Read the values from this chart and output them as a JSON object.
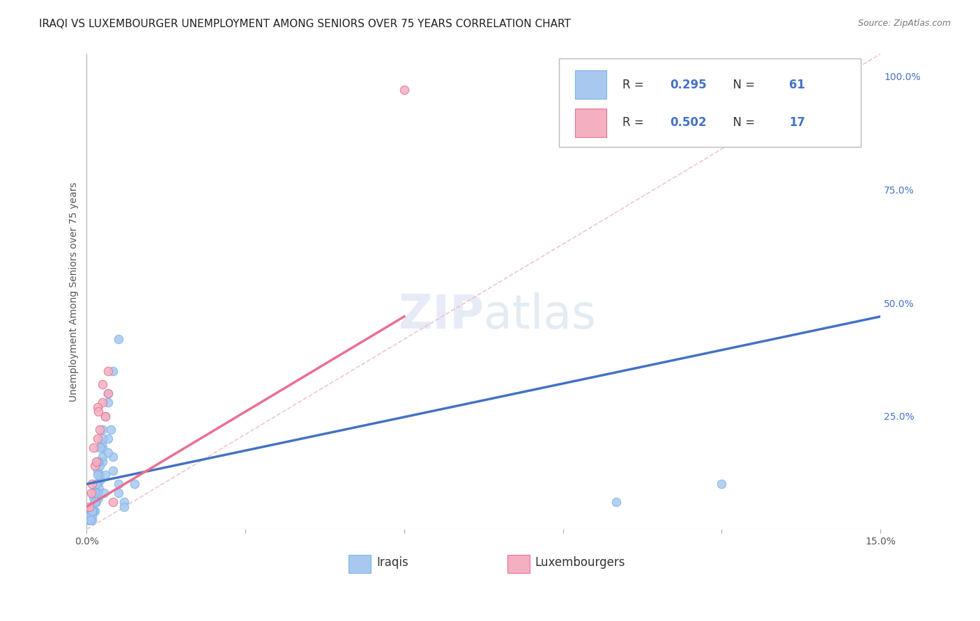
{
  "title": "IRAQI VS LUXEMBOURGER UNEMPLOYMENT AMONG SENIORS OVER 75 YEARS CORRELATION CHART",
  "source": "Source: ZipAtlas.com",
  "ylabel": "Unemployment Among Seniors over 75 years",
  "xlim": [
    0.0,
    0.15
  ],
  "ylim": [
    0.0,
    1.05
  ],
  "xtick_positions": [
    0.0,
    0.03,
    0.06,
    0.09,
    0.12,
    0.15
  ],
  "xticklabels": [
    "0.0%",
    "",
    "",
    "",
    "",
    "15.0%"
  ],
  "ytick_positions": [
    0.0,
    0.25,
    0.5,
    0.75,
    1.0
  ],
  "yticklabels_right": [
    "",
    "25.0%",
    "50.0%",
    "75.0%",
    "100.0%"
  ],
  "iraqis_x": [
    0.0005,
    0.0008,
    0.001,
    0.0012,
    0.0015,
    0.0018,
    0.002,
    0.0022,
    0.0025,
    0.003,
    0.0005,
    0.0007,
    0.001,
    0.0013,
    0.0016,
    0.002,
    0.0023,
    0.0026,
    0.003,
    0.0032,
    0.0005,
    0.0008,
    0.001,
    0.0015,
    0.002,
    0.0025,
    0.003,
    0.0035,
    0.004,
    0.0045,
    0.0006,
    0.0009,
    0.0012,
    0.0018,
    0.0022,
    0.0028,
    0.0035,
    0.004,
    0.005,
    0.006,
    0.0007,
    0.001,
    0.0015,
    0.002,
    0.0025,
    0.003,
    0.004,
    0.005,
    0.006,
    0.007,
    0.001,
    0.0015,
    0.002,
    0.003,
    0.004,
    0.005,
    0.006,
    0.007,
    0.009,
    0.12,
    0.1
  ],
  "iraqis_y": [
    0.03,
    0.05,
    0.02,
    0.08,
    0.04,
    0.06,
    0.1,
    0.07,
    0.12,
    0.15,
    0.02,
    0.03,
    0.05,
    0.04,
    0.07,
    0.13,
    0.09,
    0.11,
    0.16,
    0.08,
    0.02,
    0.04,
    0.03,
    0.06,
    0.08,
    0.14,
    0.18,
    0.12,
    0.2,
    0.22,
    0.03,
    0.05,
    0.07,
    0.1,
    0.15,
    0.19,
    0.25,
    0.3,
    0.35,
    0.42,
    0.02,
    0.04,
    0.08,
    0.12,
    0.18,
    0.22,
    0.28,
    0.16,
    0.1,
    0.06,
    0.04,
    0.06,
    0.15,
    0.2,
    0.17,
    0.13,
    0.08,
    0.05,
    0.1,
    0.1,
    0.06
  ],
  "luxembourgers_x": [
    0.0005,
    0.001,
    0.0015,
    0.002,
    0.0025,
    0.003,
    0.0035,
    0.004,
    0.0008,
    0.0012,
    0.002,
    0.003,
    0.0018,
    0.0022,
    0.004,
    0.005,
    0.06
  ],
  "luxembourgers_y": [
    0.05,
    0.1,
    0.14,
    0.2,
    0.22,
    0.28,
    0.25,
    0.3,
    0.08,
    0.18,
    0.27,
    0.32,
    0.15,
    0.26,
    0.35,
    0.06,
    0.97
  ],
  "iraqis_color": "#A8C8F0",
  "iraqis_edge_color": "#7EB5E8",
  "luxembourgers_color": "#F4B0C0",
  "luxembourgers_edge_color": "#E87090",
  "iraqis_R": 0.295,
  "iraqis_N": 61,
  "luxembourgers_R": 0.502,
  "luxembourgers_N": 17,
  "trend_iraqis_color": "#4472C4",
  "trend_luxembourgers_color": "#E87090",
  "diagonal_color": "#E8B8C0",
  "marker_size": 80,
  "background_color": "#FFFFFF",
  "grid_color": "#CCCCCC",
  "title_fontsize": 11,
  "axis_label_fontsize": 10,
  "tick_fontsize": 10,
  "right_tick_color": "#4472C4"
}
